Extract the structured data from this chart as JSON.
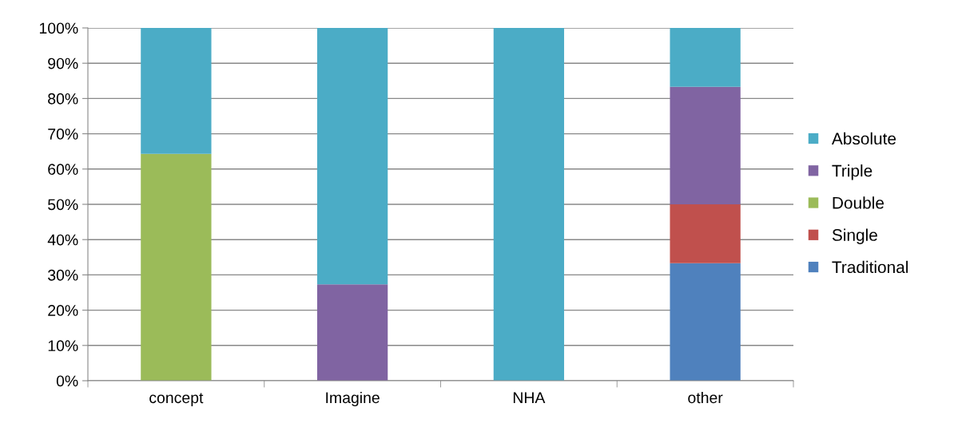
{
  "chart_data": {
    "type": "bar",
    "stacked": true,
    "categories": [
      "concept",
      "Imagine",
      "NHA",
      "other"
    ],
    "series": [
      {
        "name": "Traditional",
        "color": "#4f81bd",
        "values": [
          null,
          null,
          null,
          33.3
        ]
      },
      {
        "name": "Single",
        "color": "#c0504d",
        "values": [
          null,
          null,
          null,
          16.7
        ]
      },
      {
        "name": "Double",
        "color": "#9bbb59",
        "values": [
          64.3,
          null,
          null,
          null
        ]
      },
      {
        "name": "Triple",
        "color": "#8064a2",
        "values": [
          null,
          27.3,
          null,
          33.3
        ]
      },
      {
        "name": "Absolute",
        "color": "#4bacc6",
        "values": [
          35.7,
          72.7,
          100,
          16.7
        ]
      }
    ],
    "ylim": [
      0,
      100
    ],
    "yticks": [
      {
        "value": 0,
        "label": "0%"
      },
      {
        "value": 10,
        "label": "10%"
      },
      {
        "value": 20,
        "label": "20%"
      },
      {
        "value": 30,
        "label": "30%"
      },
      {
        "value": 40,
        "label": "40%"
      },
      {
        "value": 50,
        "label": "50%"
      },
      {
        "value": 60,
        "label": "60%"
      },
      {
        "value": 70,
        "label": "70%"
      },
      {
        "value": 80,
        "label": "80%"
      },
      {
        "value": 90,
        "label": "90%"
      },
      {
        "value": 100,
        "label": "100%"
      }
    ],
    "grid": "y",
    "legend": "right"
  }
}
